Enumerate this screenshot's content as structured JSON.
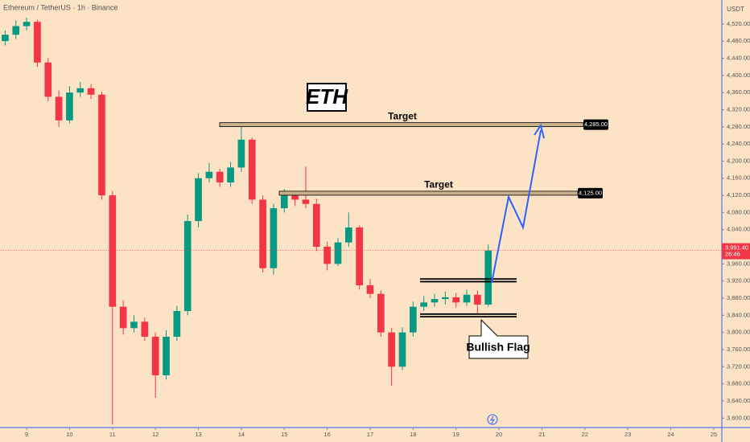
{
  "chart_data": {
    "type": "candlestick",
    "title": "Ethereum / TetherUS · 1h · Binance",
    "currency": "USDT",
    "symbol_label": "ETH",
    "xlim": [
      8.38,
      25.19
    ],
    "xticks": [
      9,
      10,
      11,
      12,
      13,
      14,
      15,
      16,
      17,
      18,
      19,
      20,
      21,
      22,
      23,
      24,
      25
    ],
    "ylim": [
      3578,
      4576
    ],
    "yticks": [
      {
        "value": 3600,
        "label": "3,600.00"
      },
      {
        "value": 3640,
        "label": "3,640.00"
      },
      {
        "value": 3680,
        "label": "3,680.00"
      },
      {
        "value": 3720,
        "label": "3,720.00"
      },
      {
        "value": 3760,
        "label": "3,760.00"
      },
      {
        "value": 3800,
        "label": "3,800.00"
      },
      {
        "value": 3840,
        "label": "3,840.00"
      },
      {
        "value": 3880,
        "label": "3,880.00"
      },
      {
        "value": 3920,
        "label": "3,920.00"
      },
      {
        "value": 3960,
        "label": "3,960.00"
      },
      {
        "value": 4000,
        "label": "4,000.00"
      },
      {
        "value": 4040,
        "label": "4,040.00"
      },
      {
        "value": 4080,
        "label": "4,080.00"
      },
      {
        "value": 4120,
        "label": "4,120.00"
      },
      {
        "value": 4160,
        "label": "4,160.00"
      },
      {
        "value": 4200,
        "label": "4,200.00"
      },
      {
        "value": 4240,
        "label": "4,240.00"
      },
      {
        "value": 4280,
        "label": "4,280.00"
      },
      {
        "value": 4320,
        "label": "4,320.00"
      },
      {
        "value": 4360,
        "label": "4,360.00"
      },
      {
        "value": 4400,
        "label": "4,400.00"
      },
      {
        "value": 4440,
        "label": "4,440.00"
      },
      {
        "value": 4480,
        "label": "4,480.00"
      },
      {
        "value": 4520,
        "label": "4,520.00"
      }
    ],
    "up_color": "#089981",
    "down_color": "#f23645",
    "x": [
      8.5,
      8.75,
      9,
      9.25,
      9.5,
      9.75,
      10,
      10.25,
      10.5,
      10.75,
      11,
      11.25,
      11.5,
      11.75,
      12,
      12.25,
      12.5,
      12.75,
      13,
      13.25,
      13.5,
      13.75,
      14,
      14.25,
      14.5,
      14.75,
      15,
      15.25,
      15.5,
      15.75,
      16,
      16.25,
      16.5,
      16.75,
      17,
      17.25,
      17.5,
      17.75,
      18,
      18.25,
      18.5,
      18.75,
      19,
      19.25,
      19.5,
      19.75
    ],
    "open": [
      4480,
      4495,
      4515,
      4525,
      4430,
      4350,
      4295,
      4360,
      4370,
      4355,
      4120,
      3860,
      3810,
      3825,
      3790,
      3700,
      3790,
      3850,
      4060,
      4160,
      4175,
      4150,
      4185,
      4250,
      4110,
      3950,
      4090,
      4120,
      4110,
      4100,
      4000,
      3960,
      4010,
      4045,
      3910,
      3890,
      3800,
      3720,
      3800,
      3860,
      3870,
      3878,
      3882,
      3870,
      3888,
      3865
    ],
    "high": [
      4505,
      4528,
      4535,
      4530,
      4440,
      4365,
      4375,
      4385,
      4380,
      4362,
      4130,
      3875,
      3840,
      3835,
      3800,
      3805,
      3862,
      4075,
      4172,
      4195,
      4182,
      4198,
      4285,
      4255,
      4120,
      4100,
      4135,
      4130,
      4187,
      4112,
      4012,
      4020,
      4080,
      4050,
      3925,
      3898,
      3810,
      3812,
      3872,
      3885,
      3890,
      3895,
      3892,
      3900,
      3898,
      4005
    ],
    "low": [
      4470,
      4485,
      4505,
      4420,
      4340,
      4280,
      4288,
      4350,
      4345,
      4110,
      3585,
      3795,
      3800,
      3780,
      3647,
      3690,
      3780,
      3840,
      4045,
      4150,
      4140,
      4140,
      4175,
      4100,
      3940,
      3935,
      4080,
      4095,
      4090,
      3990,
      3945,
      3955,
      4000,
      3900,
      3880,
      3790,
      3675,
      3712,
      3790,
      3850,
      3860,
      3865,
      3858,
      3862,
      3844,
      3860
    ],
    "close": [
      4495,
      4515,
      4525,
      4430,
      4350,
      4295,
      4360,
      4370,
      4355,
      4120,
      3860,
      3810,
      3825,
      3790,
      3700,
      3790,
      3850,
      4060,
      4160,
      4175,
      4150,
      4185,
      4250,
      4110,
      3950,
      4090,
      4120,
      4110,
      4100,
      4000,
      3960,
      4010,
      4045,
      3910,
      3890,
      3800,
      3720,
      3800,
      3860,
      3870,
      3878,
      3882,
      3870,
      3888,
      3865,
      3991.4
    ],
    "last_price": 3991.4,
    "last_price_label": "3,991.40",
    "countdown": "26:46",
    "targets": [
      {
        "label": "Target",
        "price": 4285,
        "price_label": "4,285.00"
      },
      {
        "label": "Target",
        "price": 4125,
        "price_label": "4,125.00"
      }
    ],
    "flag": {
      "label": "Bullish Flag",
      "upper": 3922,
      "lower": 3840
    }
  }
}
